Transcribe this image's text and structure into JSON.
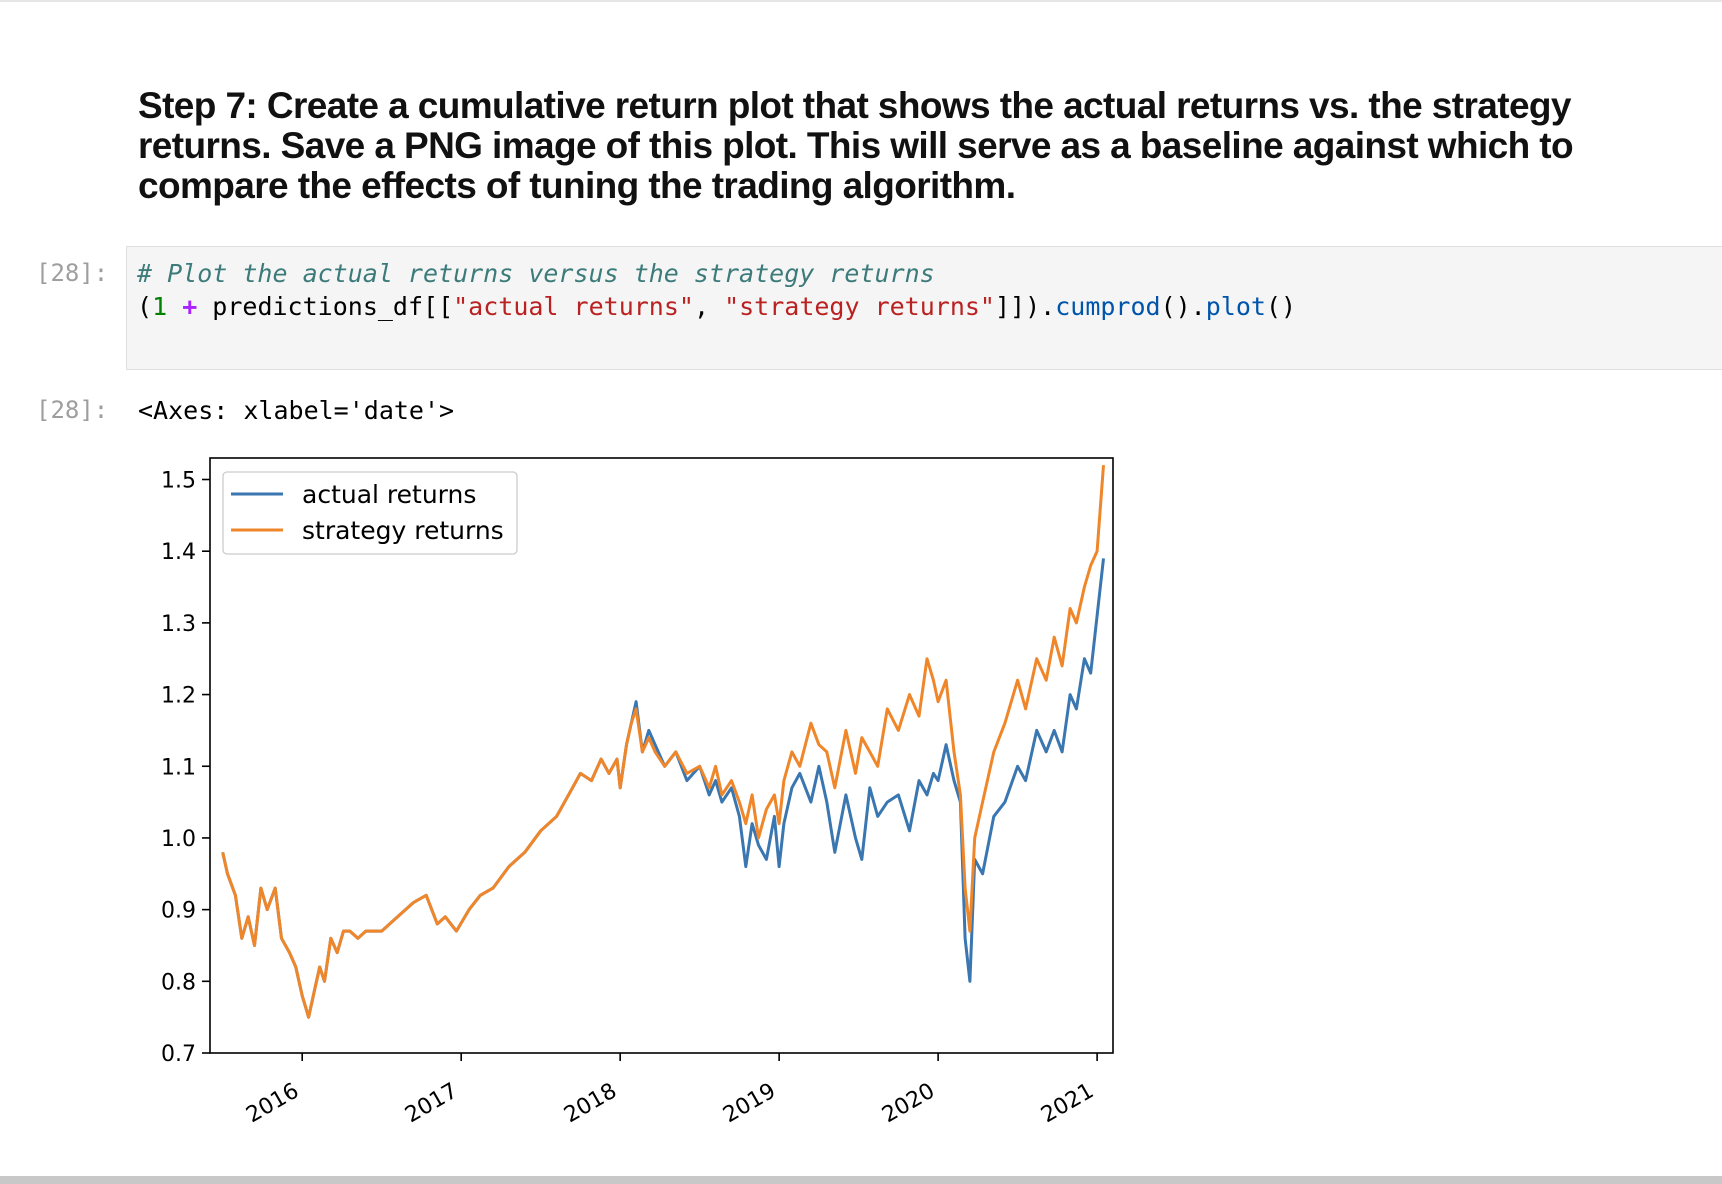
{
  "heading": "Step 7: Create a cumulative return plot that shows the actual returns vs. the strategy returns. Save a PNG image of this plot. This will serve as a baseline against which to compare the effects of tuning the trading algorithm.",
  "input_prompt": "[28]:",
  "output_prompt": "[28]:",
  "code": {
    "comment": "# Plot the actual returns versus the strategy returns",
    "line2": {
      "open_paren": "(",
      "one": "1",
      "plus": "+",
      "df_open": " predictions_df[[",
      "str1": "\"actual returns\"",
      "comma": ", ",
      "str2": "\"strategy returns\"",
      "close": "]]).",
      "cumprod": "cumprod",
      "paren_dot": "().",
      "plot": "plot",
      "end_paren": "()"
    }
  },
  "output_text": "<Axes: xlabel='date'>",
  "colors": {
    "actual": "#3a76b0",
    "strategy": "#f0862a"
  },
  "chart_data": {
    "type": "line",
    "title": "",
    "xlabel": "",
    "ylabel": "",
    "ylim": [
      0.7,
      1.53
    ],
    "xlim": [
      2015.42,
      2021.1
    ],
    "y_ticks": [
      "0.7",
      "0.8",
      "0.9",
      "1.0",
      "1.1",
      "1.2",
      "1.3",
      "1.4",
      "1.5"
    ],
    "x_ticks": [
      "2016",
      "2017",
      "2018",
      "2019",
      "2020",
      "2021"
    ],
    "legend_position": "upper left",
    "grid": false,
    "series": [
      {
        "name": "actual returns",
        "x": [
          2015.5,
          2015.53,
          2015.58,
          2015.62,
          2015.66,
          2015.7,
          2015.74,
          2015.78,
          2015.83,
          2015.87,
          2015.92,
          2015.96,
          2016.0,
          2016.04,
          2016.08,
          2016.11,
          2016.14,
          2016.18,
          2016.22,
          2016.26,
          2016.3,
          2016.35,
          2016.4,
          2016.5,
          2016.6,
          2016.7,
          2016.78,
          2016.85,
          2016.9,
          2016.97,
          2017.05,
          2017.12,
          2017.2,
          2017.3,
          2017.4,
          2017.5,
          2017.6,
          2017.7,
          2017.75,
          2017.82,
          2017.88,
          2017.93,
          2017.98,
          2018.0,
          2018.04,
          2018.07,
          2018.1,
          2018.14,
          2018.18,
          2018.22,
          2018.28,
          2018.35,
          2018.42,
          2018.5,
          2018.56,
          2018.6,
          2018.64,
          2018.7,
          2018.75,
          2018.79,
          2018.83,
          2018.87,
          2018.92,
          2018.97,
          2019.0,
          2019.03,
          2019.08,
          2019.13,
          2019.2,
          2019.25,
          2019.3,
          2019.35,
          2019.42,
          2019.48,
          2019.52,
          2019.57,
          2019.62,
          2019.68,
          2019.75,
          2019.82,
          2019.88,
          2019.93,
          2019.97,
          2020.0,
          2020.05,
          2020.1,
          2020.14,
          2020.17,
          2020.2,
          2020.23,
          2020.28,
          2020.35,
          2020.42,
          2020.5,
          2020.55,
          2020.62,
          2020.68,
          2020.73,
          2020.78,
          2020.83,
          2020.87,
          2020.92,
          2020.96,
          2021.0,
          2021.04
        ],
        "y": [
          0.98,
          0.95,
          0.92,
          0.86,
          0.89,
          0.85,
          0.93,
          0.9,
          0.93,
          0.86,
          0.84,
          0.82,
          0.78,
          0.75,
          0.79,
          0.82,
          0.8,
          0.86,
          0.84,
          0.87,
          0.87,
          0.86,
          0.87,
          0.87,
          0.89,
          0.91,
          0.92,
          0.88,
          0.89,
          0.87,
          0.9,
          0.92,
          0.93,
          0.96,
          0.98,
          1.01,
          1.03,
          1.07,
          1.09,
          1.08,
          1.11,
          1.09,
          1.11,
          1.07,
          1.13,
          1.16,
          1.19,
          1.12,
          1.15,
          1.13,
          1.1,
          1.12,
          1.08,
          1.1,
          1.06,
          1.08,
          1.05,
          1.07,
          1.03,
          0.96,
          1.02,
          0.99,
          0.97,
          1.03,
          0.96,
          1.02,
          1.07,
          1.09,
          1.05,
          1.1,
          1.05,
          0.98,
          1.06,
          1.0,
          0.97,
          1.07,
          1.03,
          1.05,
          1.06,
          1.01,
          1.08,
          1.06,
          1.09,
          1.08,
          1.13,
          1.08,
          1.05,
          0.86,
          0.8,
          0.97,
          0.95,
          1.03,
          1.05,
          1.1,
          1.08,
          1.15,
          1.12,
          1.15,
          1.12,
          1.2,
          1.18,
          1.25,
          1.23,
          1.31,
          1.39
        ]
      },
      {
        "name": "strategy returns",
        "x": [
          2015.5,
          2015.53,
          2015.58,
          2015.62,
          2015.66,
          2015.7,
          2015.74,
          2015.78,
          2015.83,
          2015.87,
          2015.92,
          2015.96,
          2016.0,
          2016.04,
          2016.08,
          2016.11,
          2016.14,
          2016.18,
          2016.22,
          2016.26,
          2016.3,
          2016.35,
          2016.4,
          2016.5,
          2016.6,
          2016.7,
          2016.78,
          2016.85,
          2016.9,
          2016.97,
          2017.05,
          2017.12,
          2017.2,
          2017.3,
          2017.4,
          2017.5,
          2017.6,
          2017.7,
          2017.75,
          2017.82,
          2017.88,
          2017.93,
          2017.98,
          2018.0,
          2018.04,
          2018.07,
          2018.1,
          2018.14,
          2018.18,
          2018.22,
          2018.28,
          2018.35,
          2018.42,
          2018.5,
          2018.56,
          2018.6,
          2018.64,
          2018.7,
          2018.75,
          2018.79,
          2018.83,
          2018.87,
          2018.92,
          2018.97,
          2019.0,
          2019.03,
          2019.08,
          2019.13,
          2019.2,
          2019.25,
          2019.3,
          2019.35,
          2019.42,
          2019.48,
          2019.52,
          2019.57,
          2019.62,
          2019.68,
          2019.75,
          2019.82,
          2019.88,
          2019.93,
          2019.97,
          2020.0,
          2020.05,
          2020.1,
          2020.14,
          2020.17,
          2020.2,
          2020.23,
          2020.28,
          2020.35,
          2020.42,
          2020.5,
          2020.55,
          2020.62,
          2020.68,
          2020.73,
          2020.78,
          2020.83,
          2020.87,
          2020.92,
          2020.96,
          2021.0,
          2021.04
        ],
        "y": [
          0.98,
          0.95,
          0.92,
          0.86,
          0.89,
          0.85,
          0.93,
          0.9,
          0.93,
          0.86,
          0.84,
          0.82,
          0.78,
          0.75,
          0.79,
          0.82,
          0.8,
          0.86,
          0.84,
          0.87,
          0.87,
          0.86,
          0.87,
          0.87,
          0.89,
          0.91,
          0.92,
          0.88,
          0.89,
          0.87,
          0.9,
          0.92,
          0.93,
          0.96,
          0.98,
          1.01,
          1.03,
          1.07,
          1.09,
          1.08,
          1.11,
          1.09,
          1.11,
          1.07,
          1.13,
          1.16,
          1.18,
          1.12,
          1.14,
          1.12,
          1.1,
          1.12,
          1.09,
          1.1,
          1.07,
          1.1,
          1.06,
          1.08,
          1.05,
          1.02,
          1.06,
          1.0,
          1.04,
          1.06,
          1.02,
          1.08,
          1.12,
          1.1,
          1.16,
          1.13,
          1.12,
          1.07,
          1.15,
          1.09,
          1.14,
          1.12,
          1.1,
          1.18,
          1.15,
          1.2,
          1.17,
          1.25,
          1.22,
          1.19,
          1.22,
          1.12,
          1.06,
          0.93,
          0.87,
          1.0,
          1.05,
          1.12,
          1.16,
          1.22,
          1.18,
          1.25,
          1.22,
          1.28,
          1.24,
          1.32,
          1.3,
          1.35,
          1.38,
          1.4,
          1.52
        ]
      }
    ]
  }
}
